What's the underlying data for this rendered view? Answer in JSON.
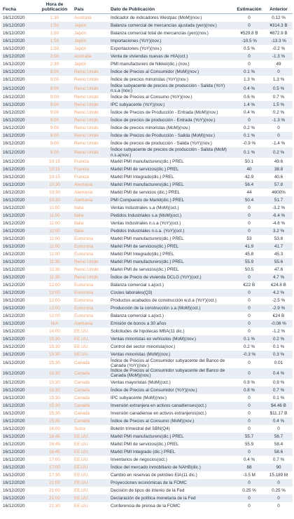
{
  "table": {
    "headers": [
      "Fecha",
      "Hora de publicación",
      "País",
      "Dato de Publicación",
      "Estimación",
      "Anterior"
    ],
    "rows": [
      [
        "16/12/2020",
        "1:30",
        "Australia",
        "Indicador de indicadores Westpac (MoM)(nov.)",
        "0",
        "0.12 %"
      ],
      [
        "16/12/2020",
        "1:50",
        "Japón",
        "Balanza comercial de mercancías ajustada (yen)(nov.)",
        "0",
        "¥314.3 B"
      ],
      [
        "16/12/2020",
        "1:50",
        "Japón",
        "Balanza comercial total de mercancías (yen)(nov.)",
        "¥529.8 B",
        "¥872.9 B"
      ],
      [
        "16/12/2020",
        "1:50",
        "Japón",
        "Importaciones (YoY)(nov.)",
        "-10.5 %",
        "-13.3 %"
      ],
      [
        "16/12/2020",
        "1:50",
        "Japón",
        "Exportaciones (YoY)(nov.)",
        "0.5 %",
        "-0.2 %"
      ],
      [
        "16/12/2020",
        "2:00",
        "Australia",
        "Venta de viviendas nuevas de HIA(oct.)",
        "0",
        "-1.3 %"
      ],
      [
        "16/12/2020",
        "2:30",
        "Japón",
        "PMI manufacturero de Nikkei(dic.) (nov.)",
        "0",
        "49"
      ],
      [
        "16/12/2020",
        "9:00",
        "Reino Unido",
        "Índice de Precios al Consumidor (MoM)(nov.)",
        "0.1 %",
        "0"
      ],
      [
        "16/12/2020",
        "9:00",
        "Reino Unido",
        "Índice de precios minoristas (YoY)(nov.)",
        "1.3 %",
        "1.3 %"
      ],
      [
        "16/12/2020",
        "9:00",
        "Reino Unido",
        "Índice subyacente de precios de producción - Salida (YoY) n.s.a (nov.)",
        "0.4 %",
        "0.5 %"
      ],
      [
        "16/12/2020",
        "9:00",
        "Reino Unido",
        "Índice de Precios al Consumo (YoY)(nov.)",
        "0.6 %",
        "0.7 %"
      ],
      [
        "16/12/2020",
        "9:00",
        "Reino Unido",
        "IPC subyacente (YoY)(nov.)",
        "1.4 %",
        "1.5 %"
      ],
      [
        "16/12/2020",
        "9:00",
        "Reino Unido",
        "Índice de Precios de Producción - Entrada (MoM)(nov.)",
        "0.4 %",
        "0.2 %"
      ],
      [
        "16/12/2020",
        "9:00",
        "Reino Unido",
        "Índice de precios de producción - Entrada (YoY)(nov.)",
        "0",
        "-1.3 %"
      ],
      [
        "16/12/2020",
        "9:00",
        "Reino Unido",
        "Índice de precios minoristas (MoM)(nov.)",
        "0.2 %",
        "0"
      ],
      [
        "16/12/2020",
        "9:00",
        "Reino Unido",
        "Índice de Precios de Producción - Salida (MoM)(nov.)",
        "0.1 %",
        "0"
      ],
      [
        "16/12/2020",
        "9:00",
        "Reino Unido",
        "Índice de precios de producción - Salida (YoY)(nov.)",
        "-0.9 %",
        "-1.4 %"
      ],
      [
        "16/12/2020",
        "9:00",
        "Reino Unido",
        "Índice subyacente de precios de producción - Salida (MoM) n.s.a(nov.)",
        "0.1 %",
        "0.2 %"
      ],
      [
        "16/12/2020",
        "10:15",
        "Francia",
        "Markit PMI manufacturero(dic.) PREL",
        "50.1",
        "49.6"
      ],
      [
        "16/12/2020",
        "10:15",
        "Francia",
        "Markit PMI de servicios(dic.) PREL",
        "40",
        "38.8"
      ],
      [
        "16/12/2020",
        "10:15",
        "Francia",
        "Markit PMI Integrado(dic.) PREL",
        "42.9",
        "40.6"
      ],
      [
        "16/12/2020",
        "10:30",
        "Alemania",
        "Markit PMI manufacturero(dic.) PREL",
        "56.4",
        "57.8"
      ],
      [
        "16/12/2020",
        "10:30",
        "Alemania",
        "Markit PMI de servicios (dic.) PREL",
        "44",
        "4600%"
      ],
      [
        "16/12/2020",
        "10:30",
        "Alemania",
        "PMI Compuesto de Markit(dic.) PREL",
        "50.4",
        "51.7"
      ],
      [
        "16/12/2020",
        "11:00",
        "Italia",
        "Ventas Industriales s.a (MoM)(oct.)",
        "0",
        "-3.2 %"
      ],
      [
        "16/12/2020",
        "11:00",
        "Italia",
        "Pedidos Industriales s.a (MoM)(oct.)",
        "0",
        "-6.4 %"
      ],
      [
        "16/12/2020",
        "11:00",
        "Italia",
        "Ventas Industriales n.s.a (YoY)(oct.)",
        "0",
        "-4.6 %"
      ],
      [
        "16/12/2020",
        "11:00",
        "Italia",
        "Pedidos Industriales n.s.a. (YoY)(oct.)",
        "0",
        "3.2 %"
      ],
      [
        "16/12/2020",
        "11:00",
        "Eurozona",
        "Markit PMI manufacturero(dic.) PREL",
        "53",
        "53.8"
      ],
      [
        "16/12/2020",
        "11:00",
        "Eurozona",
        "Markit PMI de servicios(dic.) PREL",
        "41.9",
        "41.7"
      ],
      [
        "16/12/2020",
        "11:00",
        "Eurozona",
        "Markit PMI Integrado(dic.) PREL",
        "45.8",
        "45.3"
      ],
      [
        "16/12/2020",
        "11:30",
        "Reino Unido",
        "Markit PMI manufacturero(dic.) PREL",
        "55.9",
        "55.6"
      ],
      [
        "16/12/2020",
        "11:30",
        "Reino Unido",
        "Markit PMI de servicios(dic.) PREL",
        "50.5",
        "47.6"
      ],
      [
        "16/12/2020",
        "11:30",
        "Reino Unido",
        "Índice de Precio de vivienda DCLG (YoY)(oct.)",
        "0",
        "4.7 %"
      ],
      [
        "16/12/2020",
        "12:00",
        "Eurozona",
        "Balanza comercial s.a(oct.)",
        "€22 B",
        "€24.8 B"
      ],
      [
        "16/12/2020",
        "12:00",
        "Eurozona",
        "Costes laborales(Q3)",
        "0",
        "4.2 %"
      ],
      [
        "16/12/2020",
        "12:00",
        "Eurozona",
        "Productos acabados de construcción w.d.a (YoY)(oct.)",
        "0",
        "-2.5 %"
      ],
      [
        "16/12/2020",
        "12:00",
        "Eurozona",
        "Producción de la construcción s.a (MoM)(oct.)",
        "0",
        "-2.9 %"
      ],
      [
        "16/12/2020",
        "12:00",
        "Eurozona",
        "Balanza comercial s.a(oct.)",
        "0",
        "€24 B"
      ],
      [
        "16/12/2020",
        "N/A",
        "Alemania",
        "Emisión de bonos a 30 años",
        "0",
        "-0.06 %"
      ],
      [
        "16/12/2020",
        "14:00",
        "EE.UU.",
        "Solicitudes de hipotecas MBA(11 dic.)",
        "0",
        "-1.2 %"
      ],
      [
        "16/12/2020",
        "15:30",
        "EE.UU.",
        "Ventas minoristas ex vehículos (MoM)(nov.)",
        "0.1 %",
        "0.2 %"
      ],
      [
        "16/12/2020",
        "15:30",
        "EE.UU.",
        "Control del sector minorista(nov.)",
        "0.2 %",
        "0.1 %"
      ],
      [
        "16/12/2020",
        "15:30",
        "EE.UU.",
        "Ventas minoristas (MoM)(nov.)",
        "-0.3 %",
        "0.3 %"
      ],
      [
        "16/12/2020",
        "15:30",
        "Canadá",
        "Índice de Precios al Consumidor subyacente del Banco de Canada (YoY)(nov.)",
        "0",
        "0.01"
      ],
      [
        "16/12/2020",
        "15:30",
        "Canadá",
        "Índice de Precios al Consumidor subyacente del Banco de Canada (MoM)(nov.)",
        "0",
        "0.4 %"
      ],
      [
        "16/12/2020",
        "15:30",
        "Canadá",
        "Ventas mayoristas (MoM)(oct.)",
        "0.9 %",
        "0.9 %"
      ],
      [
        "16/12/2020",
        "15:30",
        "Canadá",
        "Índice de Precios al Consumidor (YoY)(nov.)",
        "0.8 %",
        "0.7 %"
      ],
      [
        "16/12/2020",
        "15:30",
        "Canadá",
        "IPC subyacente (MoM)(nov.)",
        "0",
        "0.1 %"
      ],
      [
        "16/12/2020",
        "15:30",
        "Canadá",
        "Inversión extranjera en activos canadienses(oct.)",
        "0",
        "$4.46 B"
      ],
      [
        "16/12/2020",
        "15:30",
        "Canadá",
        "Inversión canadiense en activos extranjeros(oct.)",
        "0",
        "$11.17 B"
      ],
      [
        "16/12/2020",
        "15:30",
        "Canadá",
        "Índice de Precios al Consumo (MoM)(nov.)",
        "0",
        "0.4 %"
      ],
      [
        "16/12/2020",
        "16:00",
        "Suiza",
        "Boletín trimestral del SBN(Q4)",
        "0",
        "0"
      ],
      [
        "16/12/2020",
        "16:45",
        "EE.UU.",
        "Markit PMI manufacturero(dic.) PREL",
        "55.7",
        "56.7"
      ],
      [
        "16/12/2020",
        "16:45",
        "EE.UU.",
        "Markit PMI de servicios(dic.) PREL",
        "55.9",
        "58.4"
      ],
      [
        "16/12/2020",
        "16:45",
        "EE.UU.",
        "Markit PMI Integrado (dic.) PREL",
        "0",
        "58.6"
      ],
      [
        "16/12/2020",
        "17:00",
        "EE.UU.",
        "Inventarios de negocios(oct.)",
        "0.4 %",
        "0.7 %"
      ],
      [
        "16/12/2020",
        "17:00",
        "EE.UU.",
        "Índice del mercado inmobiliario de NAHB(dic.)",
        "88",
        "90"
      ],
      [
        "16/12/2020",
        "17:30",
        "EE.UU.",
        "Cambio en reservas de petróleo EIA(11 dic.)",
        "-3.5 M",
        "15.189 M"
      ],
      [
        "16/12/2020",
        "21:00",
        "EE.UU.",
        "Proyecciones económicas de la FOMC",
        "0",
        "0"
      ],
      [
        "16/12/2020",
        "21:00",
        "EE.UU.",
        "Decisión de tipos de interés de la Fed",
        "0.25 %",
        "0.25 %"
      ],
      [
        "16/12/2020",
        "21:00",
        "EE.UU.",
        "Declaración de política monetaria de la Fed",
        "0",
        "0"
      ],
      [
        "16/12/2020",
        "21:30",
        "EE.UU.",
        "Conferencia de prensa de la FOMC",
        "0",
        "0"
      ]
    ]
  }
}
